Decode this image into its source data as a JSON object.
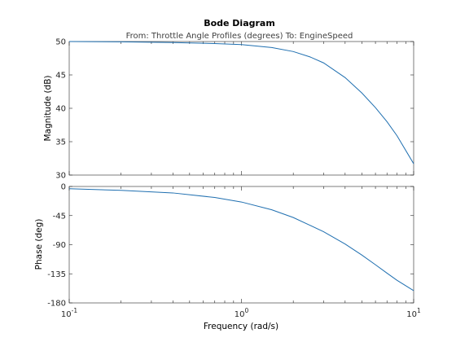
{
  "chart_data": {
    "type": "line",
    "title": "Bode Diagram",
    "subtitle": "From: Throttle Angle Profiles (degrees)  To: EngineSpeed",
    "xlabel": "Frequency  (rad/s)",
    "xscale": "log",
    "xlim": [
      0.1,
      10
    ],
    "xticks": [
      {
        "value": 0.1,
        "base": "10",
        "exp": "-1"
      },
      {
        "value": 1,
        "base": "10",
        "exp": "0"
      },
      {
        "value": 10,
        "base": "10",
        "exp": "1"
      }
    ],
    "panels": [
      {
        "name": "magnitude",
        "ylabel": "Magnitude (dB)",
        "ylim": [
          30,
          50
        ],
        "yticks": [
          30,
          35,
          40,
          45,
          50
        ],
        "x": [
          0.1,
          0.2,
          0.4,
          0.7,
          1.0,
          1.5,
          2.0,
          2.5,
          3.0,
          4.0,
          5.0,
          6.0,
          7.0,
          8.0,
          10.0
        ],
        "y": [
          50.0,
          49.95,
          49.85,
          49.7,
          49.55,
          49.1,
          48.5,
          47.7,
          46.8,
          44.6,
          42.3,
          40.1,
          38.0,
          35.9,
          31.7
        ]
      },
      {
        "name": "phase",
        "ylabel": "Phase (deg)",
        "ylim": [
          -180,
          0
        ],
        "yticks": [
          -180,
          -135,
          -90,
          -45,
          0
        ],
        "x": [
          0.1,
          0.2,
          0.4,
          0.7,
          1.0,
          1.5,
          2.0,
          2.5,
          3.0,
          4.0,
          5.0,
          6.0,
          7.0,
          8.0,
          10.0
        ],
        "y": [
          -3.5,
          -6,
          -10,
          -17,
          -24,
          -36,
          -48,
          -60,
          -70,
          -89,
          -106,
          -121,
          -134,
          -145,
          -161
        ]
      }
    ],
    "grid": false,
    "color": "#1f6fb0"
  }
}
